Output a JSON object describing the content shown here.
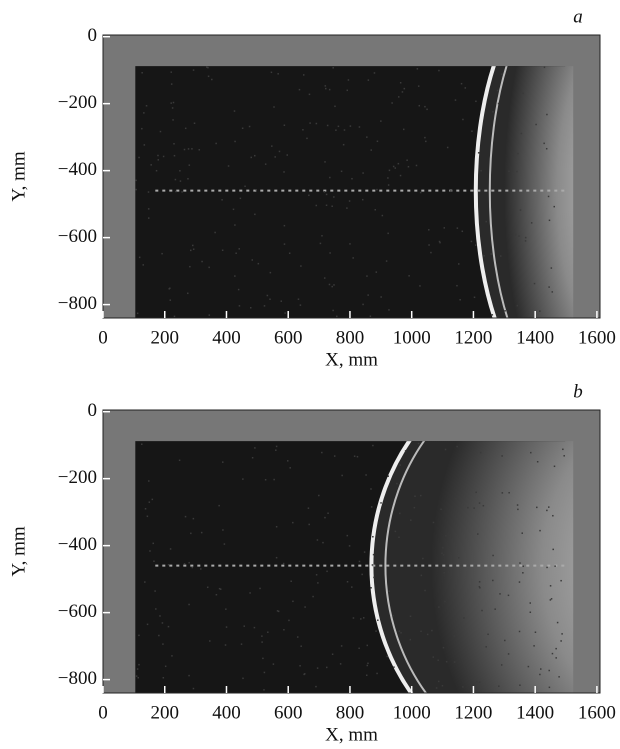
{
  "chart_data": [
    {
      "type": "image",
      "panel_label": "a",
      "xlabel": "X, mm",
      "ylabel": "Y, mm",
      "xlim": [
        0,
        1610
      ],
      "ylim": [
        -840,
        5
      ],
      "xticks": [
        0,
        200,
        400,
        600,
        800,
        1000,
        1200,
        1400,
        1600
      ],
      "yticks": [
        {
          "value": 0,
          "label": "0"
        },
        {
          "value": -200,
          "label": "−200"
        },
        {
          "value": -400,
          "label": "−400"
        },
        {
          "value": -600,
          "label": "−600"
        },
        {
          "value": -800,
          "label": "−800"
        }
      ]
    },
    {
      "type": "image",
      "panel_label": "b",
      "xlabel": "X, mm",
      "ylabel": "Y, mm",
      "xlim": [
        0,
        1610
      ],
      "ylim": [
        -840,
        5
      ],
      "xticks": [
        0,
        200,
        400,
        600,
        800,
        1000,
        1200,
        1400,
        1600
      ],
      "yticks": [
        {
          "value": 0,
          "label": "0"
        },
        {
          "value": -200,
          "label": "−200"
        },
        {
          "value": -400,
          "label": "−400"
        },
        {
          "value": -600,
          "label": "−600"
        },
        {
          "value": -800,
          "label": "−800"
        }
      ]
    }
  ]
}
